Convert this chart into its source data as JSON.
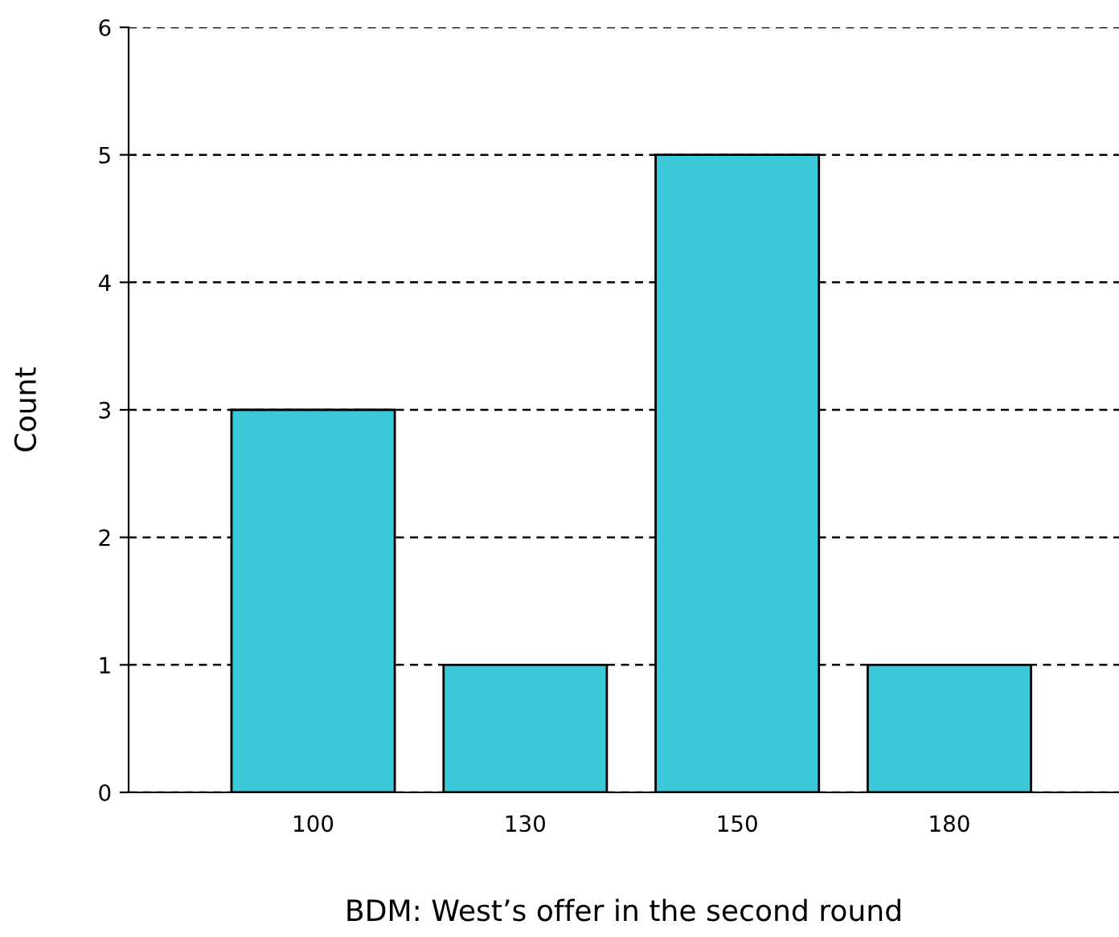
{
  "chart_data": {
    "type": "bar",
    "xlabel": "BDM: West’s offer in the second round",
    "ylabel": "Count",
    "categories": [
      "100",
      "130",
      "150",
      "180"
    ],
    "values": [
      3,
      1,
      5,
      1
    ],
    "color": "#3cc8d8",
    "ylim": [
      0,
      6
    ],
    "yticks": [
      0,
      1,
      2,
      3,
      4,
      5,
      6
    ],
    "grid": "y",
    "legend": false
  }
}
